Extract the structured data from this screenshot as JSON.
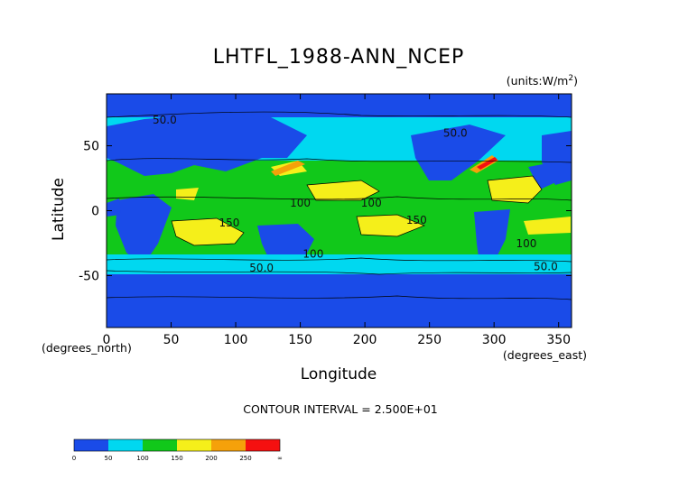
{
  "chart_data": {
    "type": "heatmap",
    "title": "LHTFL_1988-ANN_NCEP",
    "units": "(units:W/m^2)",
    "units_superscript": "2",
    "units_prefix": "(units:W/m",
    "units_suffix": ")",
    "xlabel": "Longitude",
    "ylabel": "Latitude",
    "x_unit": "(degrees_east)",
    "y_unit": "(degrees_north)",
    "xlim": [
      0,
      360
    ],
    "ylim": [
      -90,
      90
    ],
    "x_ticks": [
      0,
      50,
      100,
      150,
      200,
      250,
      300,
      350
    ],
    "y_ticks": [
      50,
      0,
      -50
    ],
    "contour_interval_text": "CONTOUR INTERVAL = 2.500E+01",
    "colorbar": {
      "levels": [
        "0",
        "50",
        "100",
        "150",
        "200",
        "250",
        "∞"
      ],
      "colors": [
        "#1a4be8",
        "#00d8f0",
        "#11c81a",
        "#f5ef1a",
        "#f5a10a",
        "#f51010"
      ]
    },
    "contour_labels": [
      {
        "text": "50.0",
        "lon": 45,
        "lat": 67
      },
      {
        "text": "50.0",
        "lon": 270,
        "lat": 57
      },
      {
        "text": "100",
        "lon": 150,
        "lat": 3
      },
      {
        "text": "100",
        "lon": 205,
        "lat": 3
      },
      {
        "text": "150",
        "lon": 95,
        "lat": -12
      },
      {
        "text": "150",
        "lon": 240,
        "lat": -10
      },
      {
        "text": "100",
        "lon": 325,
        "lat": -28
      },
      {
        "text": "100",
        "lon": 160,
        "lat": -36
      },
      {
        "text": "50.0",
        "lon": 120,
        "lat": -47
      },
      {
        "text": "50.0",
        "lon": 340,
        "lat": -46
      }
    ]
  }
}
